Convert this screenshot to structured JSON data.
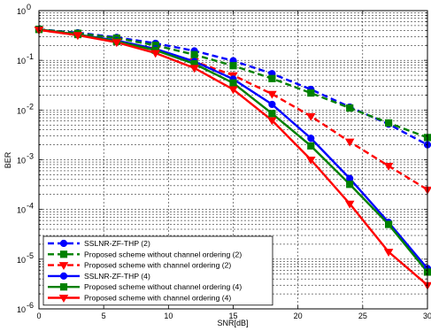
{
  "chart_data": {
    "type": "line",
    "xlabel": "SNR[dB]",
    "ylabel": "BER",
    "xlim": [
      0,
      30
    ],
    "ylim": [
      1e-06,
      1
    ],
    "yscale": "log",
    "grid": true,
    "legend_position": "bottom-left",
    "x": [
      0,
      3,
      6,
      9,
      12,
      15,
      18,
      21,
      24,
      27,
      30
    ],
    "xticks": [
      0,
      5,
      10,
      15,
      20,
      25,
      30
    ],
    "xtick_labels": [
      "0",
      "5",
      "10",
      "15",
      "20",
      "25",
      "30"
    ],
    "yticks": [
      {
        "base": "10",
        "exp": "0"
      },
      {
        "base": "10",
        "exp": "-1"
      },
      {
        "base": "10",
        "exp": "-2"
      },
      {
        "base": "10",
        "exp": "-3"
      },
      {
        "base": "10",
        "exp": "-4"
      },
      {
        "base": "10",
        "exp": "-5"
      },
      {
        "base": "10",
        "exp": "-6"
      }
    ],
    "series": [
      {
        "name": "SSLNR-ZF-THP  (2)",
        "color": "#0000ff",
        "dashed": true,
        "marker": "circle",
        "values": [
          0.42,
          0.36,
          0.29,
          0.22,
          0.155,
          0.098,
          0.054,
          0.026,
          0.0115,
          0.0052,
          0.002
        ]
      },
      {
        "name": "Proposed scheme without channel ordering (2)",
        "color": "#008000",
        "dashed": true,
        "marker": "square",
        "values": [
          0.42,
          0.35,
          0.28,
          0.2,
          0.13,
          0.078,
          0.043,
          0.022,
          0.011,
          0.0055,
          0.0028
        ]
      },
      {
        "name": "Proposed scheme with channel ordering (2)",
        "color": "#ff0000",
        "dashed": true,
        "marker": "triangle-down",
        "values": [
          0.41,
          0.32,
          0.24,
          0.16,
          0.095,
          0.05,
          0.021,
          0.0075,
          0.0023,
          0.00075,
          0.00025
        ]
      },
      {
        "name": "SSLNR-ZF-THP  (4)",
        "color": "#0000ff",
        "dashed": false,
        "marker": "circle",
        "values": [
          0.42,
          0.33,
          0.25,
          0.17,
          0.095,
          0.042,
          0.013,
          0.0027,
          0.00042,
          5.5e-05,
          6.5e-06
        ]
      },
      {
        "name": "Proposed scheme without channel ordering (4)",
        "color": "#008000",
        "dashed": false,
        "marker": "square",
        "values": [
          0.42,
          0.33,
          0.24,
          0.16,
          0.085,
          0.035,
          0.0085,
          0.0019,
          0.00032,
          5e-05,
          5.5e-06
        ]
      },
      {
        "name": "Proposed scheme with channel ordering (4)",
        "color": "#ff0000",
        "dashed": false,
        "marker": "triangle-down",
        "values": [
          0.41,
          0.32,
          0.23,
          0.14,
          0.07,
          0.026,
          0.0062,
          0.001,
          0.00013,
          1.4e-05,
          3e-06
        ]
      }
    ]
  }
}
